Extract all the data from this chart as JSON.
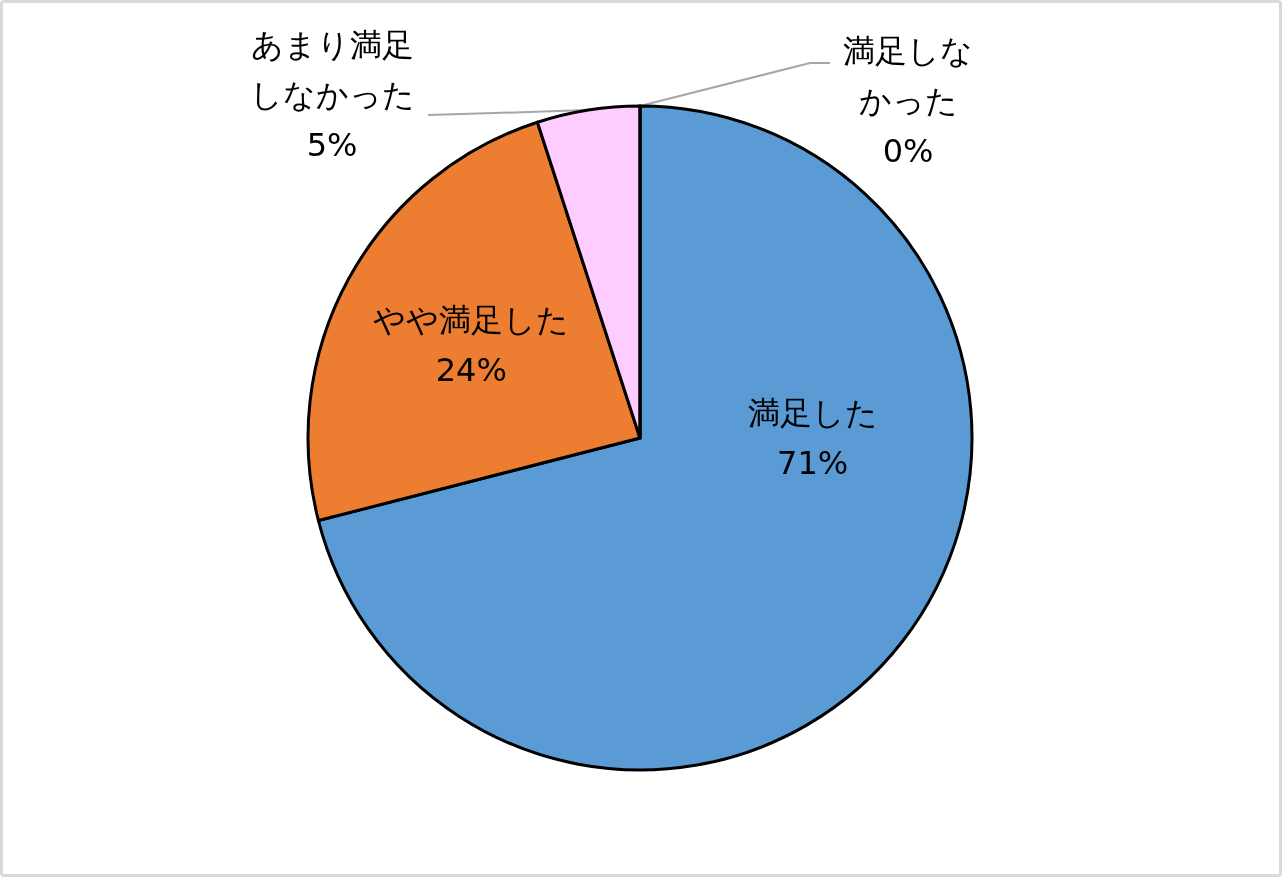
{
  "chart_data": {
    "type": "pie",
    "categories": [
      "満足した",
      "やや満足した",
      "あまり満足しなかった",
      "満足しなかった"
    ],
    "values": [
      71,
      24,
      5,
      0
    ],
    "colors": [
      "#5b9bd5",
      "#ed7d31",
      "#ffccff",
      "#ffc000"
    ],
    "value_labels": [
      "71%",
      "24%",
      "5%",
      "0%"
    ]
  }
}
